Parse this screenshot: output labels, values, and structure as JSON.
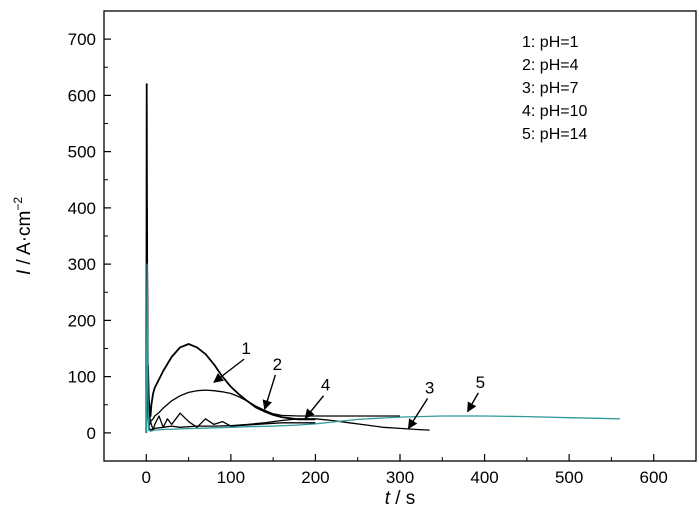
{
  "chart_data": {
    "type": "line",
    "title": "",
    "xlabel": {
      "var": "t",
      "unit": " / s"
    },
    "ylabel": {
      "var": "I",
      "unit": " / A·cm",
      "sup": "−2"
    },
    "xlim": [
      -50,
      650
    ],
    "ylim": [
      -50,
      750
    ],
    "xticks": [
      0,
      100,
      200,
      300,
      400,
      500,
      600
    ],
    "yticks": [
      0,
      100,
      200,
      300,
      400,
      500,
      600,
      700
    ],
    "legend": {
      "position": "top-right",
      "entries": [
        "1: pH=1",
        "2: pH=4",
        "3: pH=7",
        "4: pH=10",
        "5: pH=14"
      ]
    },
    "series": [
      {
        "name": "1: pH=1",
        "color": "#000000",
        "x": [
          0,
          0.5,
          1,
          1.5,
          2,
          3,
          4,
          5,
          6,
          8,
          10,
          15,
          20,
          30,
          40,
          50,
          60,
          70,
          80,
          90,
          100,
          110,
          120,
          130,
          140,
          150,
          160,
          170,
          180,
          190,
          200
        ],
        "y": [
          0,
          620,
          300,
          80,
          120,
          60,
          40,
          30,
          50,
          70,
          80,
          95,
          110,
          135,
          152,
          158,
          152,
          140,
          122,
          100,
          82,
          68,
          56,
          45,
          38,
          32,
          28,
          26,
          24,
          24,
          24
        ]
      },
      {
        "name": "2: pH=4",
        "color": "#000000",
        "x": [
          0,
          1,
          2,
          3,
          5,
          8,
          10,
          15,
          20,
          30,
          40,
          50,
          60,
          70,
          80,
          90,
          100,
          110,
          120,
          130,
          140,
          150,
          160,
          180,
          200,
          220,
          250,
          280,
          300
        ],
        "y": [
          0,
          400,
          120,
          40,
          20,
          25,
          30,
          36,
          44,
          57,
          66,
          72,
          75,
          76,
          75,
          73,
          70,
          64,
          56,
          47,
          40,
          34,
          31,
          30,
          30,
          30,
          30,
          30,
          30
        ]
      },
      {
        "name": "3: pH=7",
        "color": "#000000",
        "x": [
          0,
          1,
          2,
          3,
          5,
          10,
          20,
          30,
          40,
          60,
          80,
          100,
          120,
          140,
          160,
          180,
          200,
          220,
          240,
          260,
          280,
          300,
          320,
          335
        ],
        "y": [
          0,
          350,
          60,
          10,
          5,
          8,
          10,
          12,
          10,
          12,
          12,
          13,
          15,
          18,
          22,
          25,
          25,
          22,
          18,
          14,
          10,
          8,
          6,
          5
        ]
      },
      {
        "name": "4: pH=10",
        "color": "#000000",
        "x": [
          0,
          1,
          2,
          3,
          5,
          8,
          10,
          15,
          20,
          25,
          30,
          40,
          50,
          60,
          70,
          80,
          90,
          100,
          120,
          140,
          160,
          180,
          200
        ],
        "y": [
          0,
          130,
          40,
          10,
          20,
          5,
          15,
          30,
          10,
          25,
          15,
          35,
          20,
          10,
          25,
          15,
          20,
          12,
          14,
          16,
          18,
          18,
          18
        ]
      },
      {
        "name": "5: pH=14",
        "color": "#2f9a9a",
        "x": [
          0,
          1,
          2,
          3,
          5,
          10,
          20,
          40,
          60,
          80,
          100,
          120,
          150,
          180,
          200,
          250,
          300,
          350,
          400,
          450,
          500,
          560
        ],
        "y": [
          0,
          300,
          60,
          5,
          3,
          5,
          6,
          7,
          8,
          9,
          10,
          11,
          12,
          14,
          16,
          24,
          28,
          30,
          30,
          29,
          27,
          25
        ]
      }
    ],
    "annotations": [
      {
        "label": "1",
        "text_at": [
          118,
          140
        ],
        "arrow_to": [
          80,
          90
        ]
      },
      {
        "label": "2",
        "text_at": [
          155,
          112
        ],
        "arrow_to": [
          140,
          42
        ]
      },
      {
        "label": "4",
        "text_at": [
          212,
          75
        ],
        "arrow_to": [
          188,
          26
        ]
      },
      {
        "label": "3",
        "text_at": [
          335,
          70
        ],
        "arrow_to": [
          310,
          8
        ]
      },
      {
        "label": "5",
        "text_at": [
          395,
          80
        ],
        "arrow_to": [
          380,
          38
        ]
      }
    ]
  }
}
